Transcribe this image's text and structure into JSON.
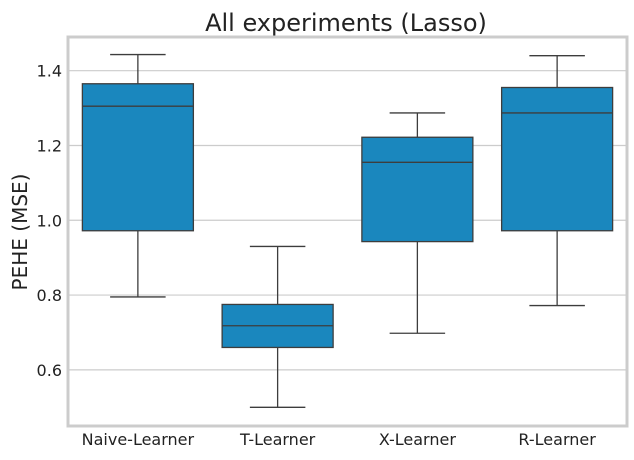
{
  "chart_data": {
    "type": "box",
    "title": "All experiments (Lasso)",
    "xlabel": "",
    "ylabel": "PEHE (MSE)",
    "ylim": [
      0.45,
      1.49
    ],
    "yticks": [
      "0.6",
      "0.8",
      "1.0",
      "1.2",
      "1.4"
    ],
    "grid": "horizontal",
    "box_color": "#1a87be",
    "categories": [
      "Naive-Learner",
      "T-Learner",
      "X-Learner",
      "R-Learner"
    ],
    "boxes": [
      {
        "whisker_low": 0.795,
        "q1": 0.972,
        "median": 1.305,
        "q3": 1.365,
        "whisker_high": 1.443
      },
      {
        "whisker_low": 0.5,
        "q1": 0.66,
        "median": 0.718,
        "q3": 0.775,
        "whisker_high": 0.93
      },
      {
        "whisker_low": 0.698,
        "q1": 0.943,
        "median": 1.155,
        "q3": 1.222,
        "whisker_high": 1.287
      },
      {
        "whisker_low": 0.772,
        "q1": 0.972,
        "median": 1.287,
        "q3": 1.355,
        "whisker_high": 1.44
      }
    ]
  }
}
